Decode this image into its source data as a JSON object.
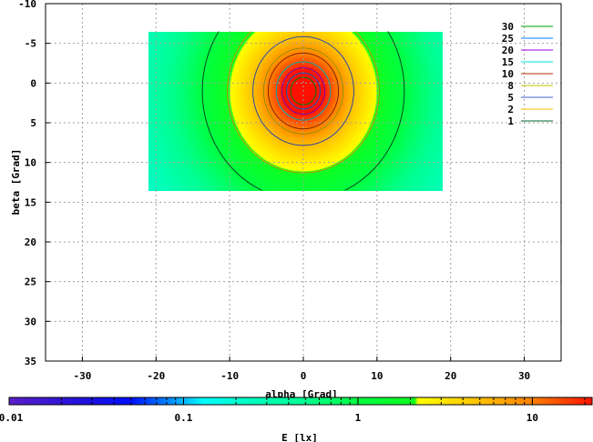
{
  "chart_data": {
    "type": "heatmap",
    "title": "",
    "xlabel": "alpha [Grad]",
    "ylabel": "beta [Grad]",
    "xlim": [
      -35,
      35
    ],
    "ylim": [
      35,
      -10
    ],
    "xticks": [
      -30,
      -20,
      -10,
      0,
      10,
      20,
      30
    ],
    "yticks": [
      -10,
      -5,
      0,
      5,
      10,
      15,
      20,
      25,
      30,
      35
    ],
    "grid": true,
    "data_extent": {
      "x": [
        -21,
        19
      ],
      "y": [
        -6.5,
        13.5
      ]
    },
    "field_model": {
      "center": [
        0,
        1
      ],
      "peak": 40,
      "core_radius": 3.5,
      "exponent": 1.32
    },
    "colorbar": {
      "label": "E [lx]",
      "scale": "log",
      "range": [
        0.01,
        22
      ],
      "ticks": [
        {
          "v": 0.01,
          "label": "0.01"
        },
        {
          "v": 0.1,
          "label": "0.1"
        },
        {
          "v": 1,
          "label": "1"
        },
        {
          "v": 10,
          "label": "10"
        }
      ],
      "stops": [
        {
          "v": 0.01,
          "c": "#5a1ec8"
        },
        {
          "v": 0.03,
          "c": "#1a10e0"
        },
        {
          "v": 0.05,
          "c": "#0010ff"
        },
        {
          "v": 0.1,
          "c": "#00b8ff"
        },
        {
          "v": 0.13,
          "c": "#00ffff"
        },
        {
          "v": 0.2,
          "c": "#00ffd0"
        },
        {
          "v": 0.5,
          "c": "#00ff90"
        },
        {
          "v": 1,
          "c": "#00ff40"
        },
        {
          "v": 2.1,
          "c": "#10ff20"
        },
        {
          "v": 2.2,
          "c": "#ffff00"
        },
        {
          "v": 5,
          "c": "#ffc000"
        },
        {
          "v": 10,
          "c": "#ff8000"
        },
        {
          "v": 22,
          "c": "#ff1000"
        }
      ]
    },
    "legend": {
      "placement": "top-right",
      "entries": [
        {
          "label": "30",
          "color": "#00a000"
        },
        {
          "label": "25",
          "color": "#0080ff"
        },
        {
          "label": "20",
          "color": "#a000e0"
        },
        {
          "label": "15",
          "color": "#00e0e0"
        },
        {
          "label": "10",
          "color": "#b03000"
        },
        {
          "label": "8",
          "color": "#c0c000"
        },
        {
          "label": "5",
          "color": "#4060d0"
        },
        {
          "label": "2",
          "color": "#ffc000"
        },
        {
          "label": "1",
          "color": "#006030"
        }
      ]
    }
  }
}
